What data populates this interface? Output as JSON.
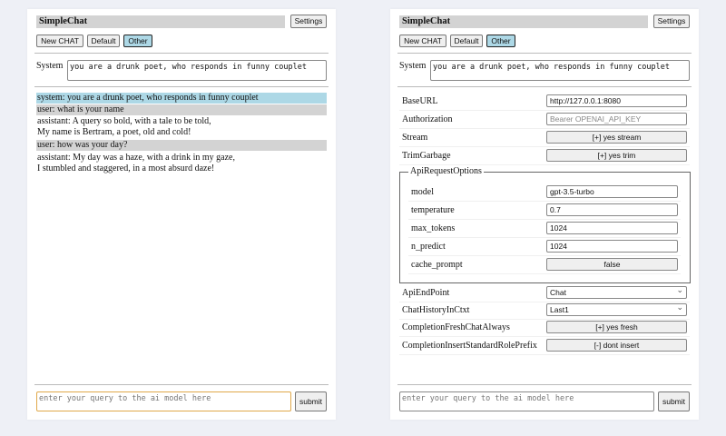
{
  "app": {
    "title": "SimpleChat",
    "settings_label": "Settings",
    "buttons": [
      "New CHAT",
      "Default",
      "Other"
    ],
    "selected": "Other",
    "system_label": "System",
    "system_value": "you are a drunk poet, who responds in funny couplet",
    "query_placeholder": "enter your query to the ai model here",
    "submit_label": "submit"
  },
  "chat": [
    {
      "role": "system",
      "lines": [
        "system: you are a drunk poet, who responds in funny couplet"
      ]
    },
    {
      "role": "user",
      "lines": [
        "user: what is your name"
      ]
    },
    {
      "role": "assistant",
      "lines": [
        "assistant: A query so bold, with a tale to be told,",
        "My name is Bertram, a poet, old and cold!"
      ]
    },
    {
      "role": "user",
      "lines": [
        "user: how was your day?"
      ]
    },
    {
      "role": "assistant",
      "lines": [
        "assistant: My day was a haze, with a drink in my gaze,",
        "I stumbled and staggered, in a most absurd daze!"
      ]
    }
  ],
  "settings": {
    "base_url": {
      "label": "BaseURL",
      "value": "http://127.0.0.1:8080"
    },
    "authorization": {
      "label": "Authorization",
      "placeholder": "Bearer OPENAI_API_KEY"
    },
    "stream": {
      "label": "Stream",
      "value": "[+] yes stream"
    },
    "trim": {
      "label": "TrimGarbage",
      "value": "[+] yes trim"
    },
    "api_options": {
      "legend": "ApiRequestOptions",
      "model": {
        "label": "model",
        "value": "gpt-3.5-turbo"
      },
      "temperature": {
        "label": "temperature",
        "value": "0.7"
      },
      "max_tokens": {
        "label": "max_tokens",
        "value": "1024"
      },
      "n_predict": {
        "label": "n_predict",
        "value": "1024"
      },
      "cache_prompt": {
        "label": "cache_prompt",
        "value": "false"
      }
    },
    "endpoint": {
      "label": "ApiEndPoint",
      "value": "Chat"
    },
    "history": {
      "label": "ChatHistoryInCtxt",
      "value": "Last1"
    },
    "fresh": {
      "label": "CompletionFreshChatAlways",
      "value": "[+] yes fresh"
    },
    "prefix": {
      "label": "CompletionInsertStandardRolePrefix",
      "value": "[-] dont insert"
    }
  },
  "colors": {
    "selected_button": "#add8e6",
    "user_msg": "#d3d3d3",
    "system_msg": "#add8e6",
    "focus_border": "#e0a84a"
  }
}
